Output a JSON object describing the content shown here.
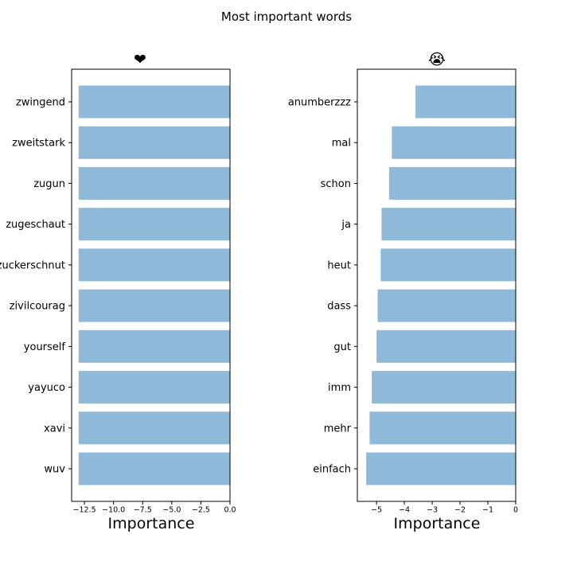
{
  "figure_title": "Most important words",
  "chart_data": [
    {
      "type": "bar",
      "orientation": "horizontal",
      "title": "❤",
      "xlabel": "Importance",
      "ylabel": "",
      "xlim": [
        -13.6,
        0
      ],
      "xticks": [
        -12.5,
        -10.0,
        -7.5,
        -5.0,
        -2.5,
        0.0
      ],
      "xtick_labels": [
        "−12.5",
        "−10.0",
        "−7.5",
        "−5.0",
        "−2.5",
        "0.0"
      ],
      "grid": false,
      "color": "#8fb9d9",
      "categories": [
        "zwingend",
        "zweitstark",
        "zugun",
        "zugeschaut",
        "zuckerschnut",
        "zivilcourag",
        "yourself",
        "yayuco",
        "xavi",
        "wuv"
      ],
      "values": [
        -13.0,
        -13.0,
        -13.0,
        -13.0,
        -13.0,
        -13.0,
        -13.0,
        -13.0,
        -13.0,
        -13.0
      ]
    },
    {
      "type": "bar",
      "orientation": "horizontal",
      "title": "😭",
      "xlabel": "Importance",
      "ylabel": "",
      "xlim": [
        -5.69,
        0
      ],
      "xticks": [
        -5,
        -4,
        -3,
        -2,
        -1,
        0
      ],
      "xtick_labels": [
        "−5",
        "−4",
        "−3",
        "−2",
        "−1",
        "0"
      ],
      "grid": false,
      "color": "#8fb9d9",
      "categories": [
        "anumberzzz",
        "mal",
        "schon",
        "ja",
        "heut",
        "dass",
        "gut",
        "imm",
        "mehr",
        "einfach"
      ],
      "values": [
        -3.6,
        -4.45,
        -4.55,
        -4.82,
        -4.85,
        -4.96,
        -5.0,
        -5.17,
        -5.25,
        -5.37
      ]
    }
  ]
}
